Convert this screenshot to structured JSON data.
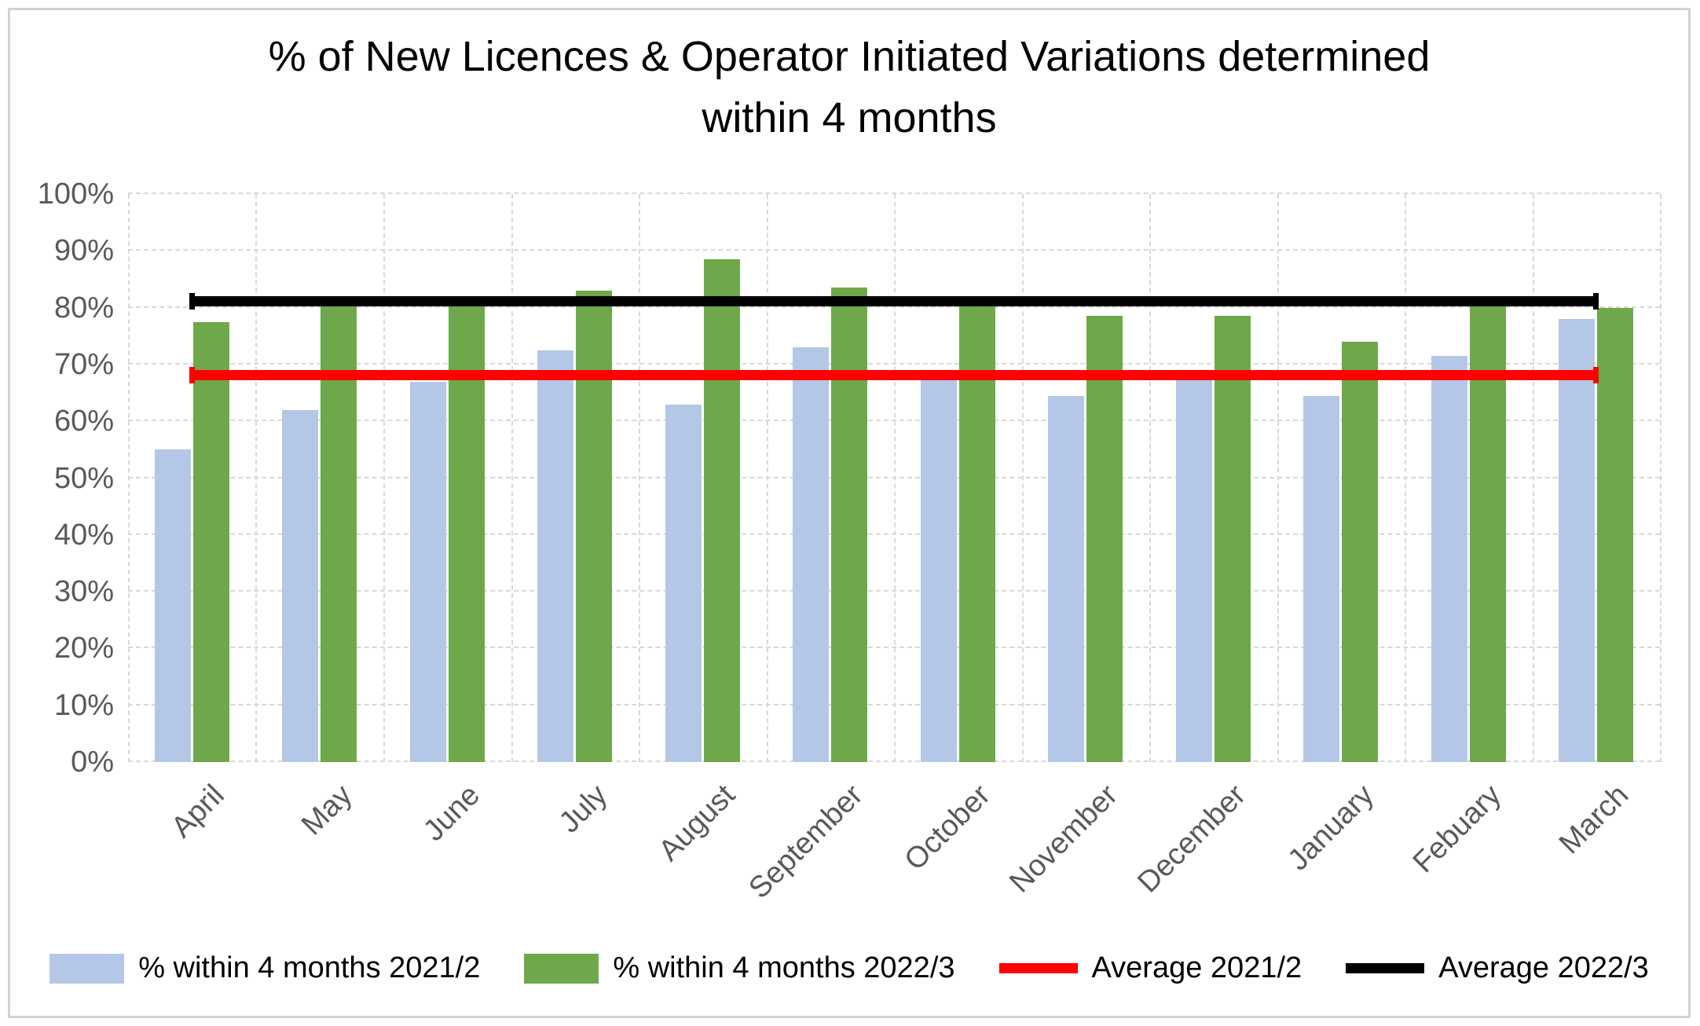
{
  "chart": {
    "title": "% of New Licences & Operator Initiated Variations determined\nwithin 4 months"
  },
  "chart_data": {
    "type": "bar",
    "title": "% of New Licences & Operator Initiated Variations determined within 4 months",
    "categories": [
      "April",
      "May",
      "June",
      "July",
      "August",
      "September",
      "October",
      "November",
      "December",
      "January",
      "Febuary",
      "March"
    ],
    "series": [
      {
        "name": "% within 4 months 2021/2",
        "color": "#B4C7E7",
        "values": [
          55,
          62,
          67,
          72.5,
          63,
          73,
          67.5,
          64.5,
          67.5,
          64.5,
          71.5,
          78
        ]
      },
      {
        "name": "% within 4 months 2022/3",
        "color": "#6EA84B",
        "values": [
          77.5,
          82,
          80.5,
          83,
          88.5,
          83.5,
          80.5,
          78.5,
          78.5,
          74,
          80.5,
          80
        ]
      }
    ],
    "average_lines": [
      {
        "name": "Average 2021/2",
        "color": "#FF0000",
        "value": 68
      },
      {
        "name": "Average 2022/3",
        "color": "#000000",
        "value": 81
      }
    ],
    "xlabel": "",
    "ylabel": "",
    "ylim": [
      0,
      100
    ],
    "ytick_step": 10,
    "ytick_format": "percent",
    "grid": true,
    "legend_position": "bottom"
  },
  "colors": {
    "gridline": "#D9D9D9",
    "axis_text": "#595959",
    "title_text": "#000000",
    "frame_border": "#D2D2D2",
    "background": "#FFFFFF"
  }
}
